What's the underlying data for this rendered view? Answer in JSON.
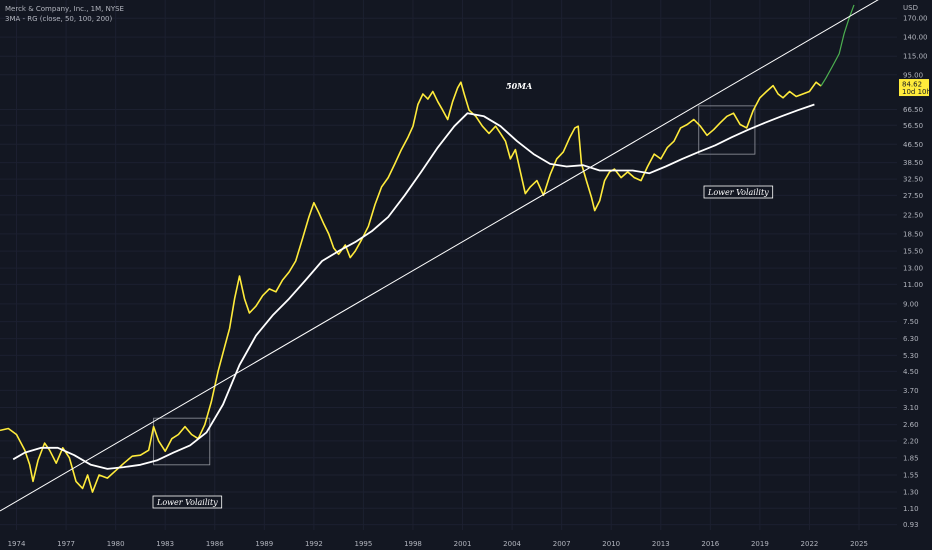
{
  "legend": {
    "symbol_line": "Merck & Company, Inc., 1M, NYSE",
    "indicator_line": "3MA - RG (close, 50, 100, 200)"
  },
  "price_label": {
    "value": "84.62",
    "countdown": "10d 10h",
    "color": "#ffeb3b"
  },
  "annotations": {
    "ma_label": "50MA",
    "box_label_1": "Lower Volaility",
    "box_label_2": "Lower Volaility"
  },
  "chart_data": {
    "type": "line",
    "yaxis": {
      "scale": "log",
      "unit": "USD",
      "ticks": [
        "0.93",
        "1.10",
        "1.30",
        "1.55",
        "1.85",
        "2.20",
        "2.60",
        "3.10",
        "3.70",
        "4.50",
        "5.30",
        "6.30",
        "7.50",
        "9.00",
        "11.00",
        "13.00",
        "15.50",
        "18.50",
        "22.50",
        "27.50",
        "32.50",
        "38.50",
        "46.50",
        "56.50",
        "66.50",
        "95.00",
        "115.00",
        "140.00",
        "170.00"
      ],
      "ylim": [
        0.88,
        205
      ]
    },
    "xaxis": {
      "ticks": [
        "1974",
        "1977",
        "1980",
        "1983",
        "1986",
        "1989",
        "1992",
        "1995",
        "1998",
        "2001",
        "2004",
        "2007",
        "2010",
        "2013",
        "2016",
        "2019",
        "2022",
        "2025"
      ],
      "xlim": [
        1973.0,
        2027.3
      ]
    },
    "series": [
      {
        "color": "#ffeb3b",
        "points": [
          [
            1973.0,
            2.45
          ],
          [
            1973.5,
            2.5
          ],
          [
            1974.0,
            2.35
          ],
          [
            1974.5,
            2.0
          ],
          [
            1974.8,
            1.72
          ],
          [
            1975.0,
            1.45
          ],
          [
            1975.3,
            1.8
          ],
          [
            1975.7,
            2.15
          ],
          [
            1976.0,
            2.0
          ],
          [
            1976.4,
            1.75
          ],
          [
            1976.8,
            2.05
          ],
          [
            1977.2,
            1.85
          ],
          [
            1977.6,
            1.45
          ],
          [
            1978.0,
            1.35
          ],
          [
            1978.3,
            1.55
          ],
          [
            1978.6,
            1.3
          ],
          [
            1979.0,
            1.55
          ],
          [
            1979.5,
            1.5
          ],
          [
            1980.0,
            1.62
          ],
          [
            1980.5,
            1.75
          ],
          [
            1981.0,
            1.88
          ],
          [
            1981.5,
            1.9
          ],
          [
            1982.0,
            2.0
          ],
          [
            1982.3,
            2.55
          ],
          [
            1982.6,
            2.2
          ],
          [
            1983.0,
            1.98
          ],
          [
            1983.4,
            2.25
          ],
          [
            1983.8,
            2.35
          ],
          [
            1984.2,
            2.55
          ],
          [
            1984.6,
            2.35
          ],
          [
            1985.0,
            2.25
          ],
          [
            1985.4,
            2.6
          ],
          [
            1985.8,
            3.3
          ],
          [
            1986.2,
            4.5
          ],
          [
            1986.6,
            5.8
          ],
          [
            1986.9,
            7.0
          ],
          [
            1987.2,
            9.5
          ],
          [
            1987.5,
            12.0
          ],
          [
            1987.8,
            9.5
          ],
          [
            1988.1,
            8.2
          ],
          [
            1988.5,
            8.8
          ],
          [
            1988.9,
            9.8
          ],
          [
            1989.3,
            10.5
          ],
          [
            1989.7,
            10.2
          ],
          [
            1990.1,
            11.5
          ],
          [
            1990.5,
            12.5
          ],
          [
            1990.9,
            14.0
          ],
          [
            1991.3,
            17.5
          ],
          [
            1991.7,
            22.0
          ],
          [
            1992.0,
            25.5
          ],
          [
            1992.3,
            23.0
          ],
          [
            1992.6,
            20.5
          ],
          [
            1992.9,
            18.5
          ],
          [
            1993.2,
            16.0
          ],
          [
            1993.5,
            15.0
          ],
          [
            1993.9,
            16.5
          ],
          [
            1994.2,
            14.5
          ],
          [
            1994.5,
            15.5
          ],
          [
            1994.9,
            17.5
          ],
          [
            1995.3,
            20.0
          ],
          [
            1995.7,
            25.0
          ],
          [
            1996.1,
            30.0
          ],
          [
            1996.5,
            33.0
          ],
          [
            1996.9,
            38.0
          ],
          [
            1997.3,
            44.0
          ],
          [
            1997.7,
            50.0
          ],
          [
            1998.0,
            56.0
          ],
          [
            1998.3,
            70.0
          ],
          [
            1998.6,
            78.0
          ],
          [
            1998.9,
            74.0
          ],
          [
            1999.2,
            80.0
          ],
          [
            1999.5,
            72.0
          ],
          [
            1999.8,
            66.0
          ],
          [
            2000.1,
            60.0
          ],
          [
            2000.4,
            72.0
          ],
          [
            2000.7,
            83.0
          ],
          [
            2000.9,
            88.0
          ],
          [
            2001.1,
            78.0
          ],
          [
            2001.4,
            66.0
          ],
          [
            2001.8,
            62.0
          ],
          [
            2002.2,
            56.0
          ],
          [
            2002.6,
            52.0
          ],
          [
            2003.0,
            56.0
          ],
          [
            2003.3,
            52.0
          ],
          [
            2003.6,
            48.0
          ],
          [
            2003.9,
            40.0
          ],
          [
            2004.2,
            44.0
          ],
          [
            2004.5,
            35.0
          ],
          [
            2004.8,
            28.0
          ],
          [
            2005.1,
            30.0
          ],
          [
            2005.5,
            32.0
          ],
          [
            2005.9,
            27.5
          ],
          [
            2006.3,
            34.0
          ],
          [
            2006.7,
            40.0
          ],
          [
            2007.1,
            43.0
          ],
          [
            2007.5,
            50.0
          ],
          [
            2007.8,
            55.0
          ],
          [
            2008.0,
            56.0
          ],
          [
            2008.2,
            38.0
          ],
          [
            2008.5,
            32.0
          ],
          [
            2008.8,
            27.0
          ],
          [
            2009.0,
            23.5
          ],
          [
            2009.3,
            26.0
          ],
          [
            2009.6,
            32.0
          ],
          [
            2009.9,
            35.0
          ],
          [
            2010.2,
            36.0
          ],
          [
            2010.6,
            33.0
          ],
          [
            2011.0,
            35.0
          ],
          [
            2011.4,
            33.0
          ],
          [
            2011.8,
            32.0
          ],
          [
            2012.2,
            37.0
          ],
          [
            2012.6,
            42.0
          ],
          [
            2013.0,
            40.0
          ],
          [
            2013.4,
            45.0
          ],
          [
            2013.8,
            48.0
          ],
          [
            2014.2,
            55.0
          ],
          [
            2014.6,
            57.0
          ],
          [
            2015.0,
            60.0
          ],
          [
            2015.4,
            56.0
          ],
          [
            2015.8,
            51.0
          ],
          [
            2016.2,
            54.0
          ],
          [
            2016.6,
            58.0
          ],
          [
            2017.0,
            62.0
          ],
          [
            2017.4,
            64.0
          ],
          [
            2017.8,
            57.0
          ],
          [
            2018.2,
            55.0
          ],
          [
            2018.6,
            66.0
          ],
          [
            2019.0,
            75.0
          ],
          [
            2019.4,
            80.0
          ],
          [
            2019.8,
            85.0
          ],
          [
            2020.1,
            78.0
          ],
          [
            2020.4,
            75.0
          ],
          [
            2020.8,
            80.0
          ],
          [
            2021.2,
            76.0
          ],
          [
            2021.6,
            78.0
          ],
          [
            2022.0,
            80.0
          ],
          [
            2022.4,
            88.0
          ],
          [
            2022.7,
            84.62
          ]
        ]
      },
      {
        "color": "#4caf50",
        "points": [
          [
            2022.7,
            84.62
          ],
          [
            2023.0,
            92.0
          ],
          [
            2023.4,
            104.0
          ],
          [
            2023.8,
            118.0
          ],
          [
            2024.1,
            145.0
          ],
          [
            2024.4,
            170.0
          ],
          [
            2024.7,
            195.0
          ]
        ]
      },
      {
        "name": "50MA",
        "color": "#ffffff",
        "points": [
          [
            1973.8,
            1.82
          ],
          [
            1974.5,
            1.95
          ],
          [
            1975.5,
            2.05
          ],
          [
            1976.5,
            2.05
          ],
          [
            1977.5,
            1.9
          ],
          [
            1978.5,
            1.72
          ],
          [
            1979.5,
            1.65
          ],
          [
            1980.5,
            1.68
          ],
          [
            1981.5,
            1.72
          ],
          [
            1982.5,
            1.8
          ],
          [
            1983.5,
            1.95
          ],
          [
            1984.5,
            2.1
          ],
          [
            1985.5,
            2.4
          ],
          [
            1986.5,
            3.2
          ],
          [
            1987.5,
            4.8
          ],
          [
            1988.5,
            6.5
          ],
          [
            1989.5,
            8.0
          ],
          [
            1990.5,
            9.5
          ],
          [
            1991.5,
            11.5
          ],
          [
            1992.5,
            14.0
          ],
          [
            1993.5,
            15.5
          ],
          [
            1994.5,
            17.0
          ],
          [
            1995.5,
            19.0
          ],
          [
            1996.5,
            22.0
          ],
          [
            1997.5,
            27.5
          ],
          [
            1998.5,
            35.0
          ],
          [
            1999.5,
            45.0
          ],
          [
            2000.5,
            56.0
          ],
          [
            2001.3,
            64.0
          ],
          [
            2002.3,
            62.0
          ],
          [
            2003.3,
            56.0
          ],
          [
            2004.3,
            48.0
          ],
          [
            2005.3,
            42.0
          ],
          [
            2006.3,
            38.0
          ],
          [
            2007.3,
            37.0
          ],
          [
            2008.3,
            37.5
          ],
          [
            2009.3,
            35.5
          ],
          [
            2010.3,
            35.5
          ],
          [
            2011.3,
            35.5
          ],
          [
            2012.3,
            34.5
          ],
          [
            2013.3,
            37.0
          ],
          [
            2014.3,
            40.0
          ],
          [
            2015.3,
            43.0
          ],
          [
            2016.3,
            46.0
          ],
          [
            2017.3,
            50.0
          ],
          [
            2018.3,
            54.0
          ],
          [
            2019.3,
            58.0
          ],
          [
            2020.3,
            62.0
          ],
          [
            2021.3,
            66.0
          ],
          [
            2022.3,
            70.0
          ]
        ]
      },
      {
        "color": "#ffffff",
        "points": [
          [
            1973.0,
            1.07
          ],
          [
            2027.3,
            230.0
          ]
        ]
      }
    ],
    "boxes": [
      {
        "x": [
          1982.3,
          1985.7
        ],
        "y": [
          1.72,
          2.78
        ]
      },
      {
        "x": [
          2015.3,
          2018.7
        ],
        "y": [
          42.0,
          69.0
        ]
      }
    ]
  }
}
